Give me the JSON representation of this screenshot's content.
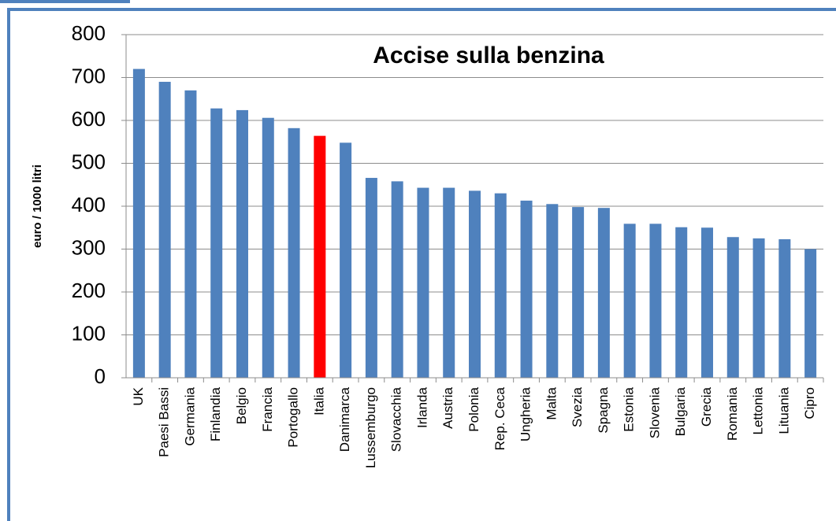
{
  "chart_data": {
    "type": "bar",
    "title": "Accise sulla benzina",
    "y_label": "euro / 1000 litri",
    "categories": [
      "UK",
      "Paesi Bassi",
      "Germania",
      "Finlandia",
      "Belgio",
      "Francia",
      "Portogallo",
      "Italia",
      "Danimarca",
      "Lussemburgo",
      "Slovacchia",
      "Irlanda",
      "Austria",
      "Polonia",
      "Rep. Ceca",
      "Ungheria",
      "Malta",
      "Svezia",
      "Spagna",
      "Estonia",
      "Slovenia",
      "Bulgaria",
      "Grecia",
      "Romania",
      "Lettonia",
      "Lituania",
      "Cipro"
    ],
    "values": [
      720,
      690,
      670,
      628,
      624,
      606,
      582,
      564,
      548,
      466,
      458,
      443,
      443,
      436,
      430,
      413,
      405,
      398,
      396,
      359,
      359,
      351,
      350,
      328,
      325,
      323,
      300
    ],
    "colors": [
      "#4f81bd",
      "#4f81bd",
      "#4f81bd",
      "#4f81bd",
      "#4f81bd",
      "#4f81bd",
      "#4f81bd",
      "#ff0000",
      "#4f81bd",
      "#4f81bd",
      "#4f81bd",
      "#4f81bd",
      "#4f81bd",
      "#4f81bd",
      "#4f81bd",
      "#4f81bd",
      "#4f81bd",
      "#4f81bd",
      "#4f81bd",
      "#4f81bd",
      "#4f81bd",
      "#4f81bd",
      "#4f81bd",
      "#4f81bd",
      "#4f81bd",
      "#4f81bd",
      "#4f81bd"
    ],
    "ylim": [
      0,
      800
    ],
    "yticks": [
      0,
      100,
      200,
      300,
      400,
      500,
      600,
      700,
      800
    ],
    "grid": true
  }
}
